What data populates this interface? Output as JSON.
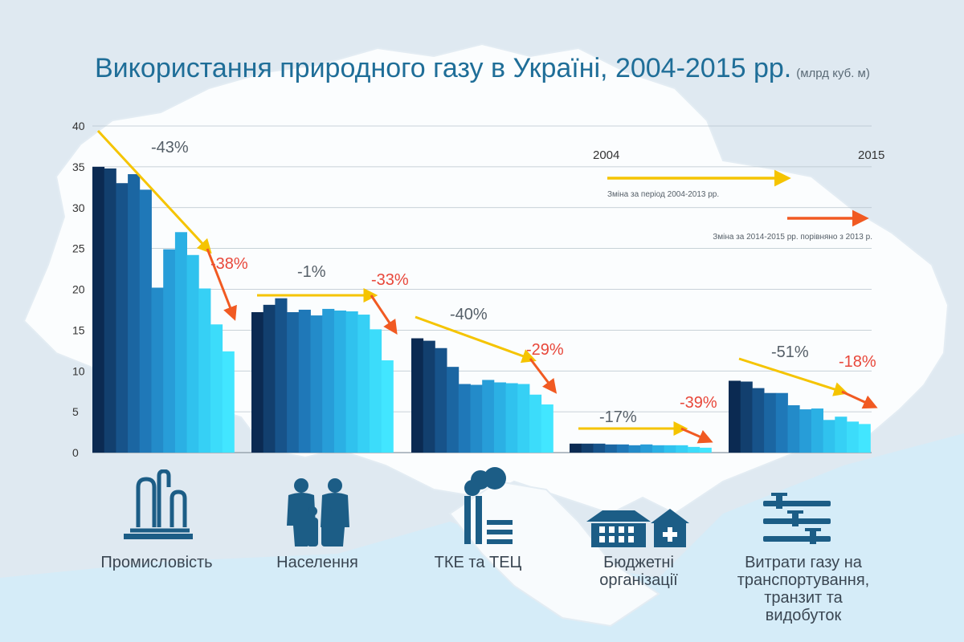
{
  "title": "Використання природного газу в Україні, 2004-2015 рр.",
  "unit": "(млрд куб. м)",
  "chart_data": {
    "type": "bar",
    "title": "Використання природного газу в Україні, 2004-2015 рр.",
    "subtitle": "(млрд куб. м)",
    "ylim": [
      0,
      40
    ],
    "yticks": [
      0,
      5,
      10,
      15,
      20,
      25,
      30,
      35,
      40
    ],
    "grid": true,
    "years": [
      "2004",
      "2005",
      "2006",
      "2007",
      "2008",
      "2009",
      "2010",
      "2011",
      "2012",
      "2013",
      "2014",
      "2015"
    ],
    "groups": [
      {
        "label": "Промисловість",
        "values": [
          35.0,
          34.8,
          33.0,
          34.1,
          32.2,
          20.2,
          24.9,
          27.0,
          24.2,
          20.1,
          15.7,
          12.4
        ],
        "change_2004_2013": "-43%",
        "change_2014_2015": "-38%"
      },
      {
        "label": "Населення",
        "values": [
          17.2,
          18.1,
          18.9,
          17.2,
          17.5,
          16.8,
          17.6,
          17.4,
          17.3,
          16.9,
          15.1,
          11.3
        ],
        "change_2004_2013": "-1%",
        "change_2014_2015": "-33%"
      },
      {
        "label": "ТКЕ та ТЕЦ",
        "values": [
          14.0,
          13.7,
          12.8,
          10.5,
          8.4,
          8.3,
          8.9,
          8.6,
          8.5,
          8.4,
          7.1,
          5.9
        ],
        "change_2004_2013": "-40%",
        "change_2014_2015": "-29%"
      },
      {
        "label": "Бюджетні організації",
        "values": [
          1.1,
          1.1,
          1.1,
          1.0,
          1.0,
          0.9,
          1.0,
          0.9,
          0.9,
          0.9,
          0.7,
          0.6
        ],
        "change_2004_2013": "-17%",
        "change_2014_2015": "-39%"
      },
      {
        "label": "Витрати газу на транспортування, транзит та видобуток",
        "values": [
          8.8,
          8.7,
          7.9,
          7.3,
          7.3,
          5.8,
          5.3,
          5.4,
          4.0,
          4.4,
          3.8,
          3.5
        ],
        "change_2004_2013": "-51%",
        "change_2014_2015": "-18%"
      }
    ],
    "legend": {
      "start_year": "2004",
      "end_year": "2015",
      "yellow_label": "Зміна за період 2004-2013 рр.",
      "red_label": "Зміна за 2014-2015 рр. порівняно з 2013 р."
    },
    "colors": {
      "bar_gradient": [
        "#0b2a52",
        "#123f6e",
        "#17538a",
        "#1b66a2",
        "#1f78b8",
        "#238bc9",
        "#279dd8",
        "#2bb0e4",
        "#30c2ee",
        "#36d0f5",
        "#3cdcfa",
        "#42e6ff"
      ],
      "yellow_arrow": "#f5c400",
      "red_arrow": "#f15a22",
      "red_text": "#e8473a",
      "grey_text": "#555f68",
      "title": "#1f6e98"
    }
  },
  "icons": [
    "factory-icon",
    "family-icon",
    "power-plant-icon",
    "public-buildings-icon",
    "pipeline-icon"
  ]
}
